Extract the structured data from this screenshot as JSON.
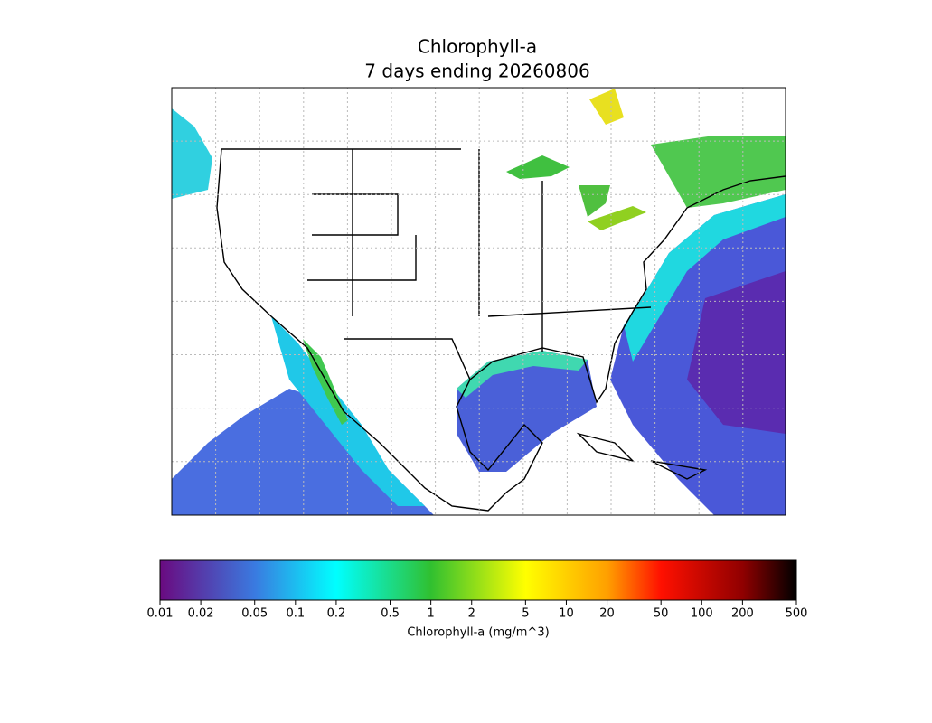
{
  "chart_data": {
    "type": "map",
    "title_lines": [
      "Chlorophyll-a",
      "7 days ending 20260806"
    ],
    "colorbar": {
      "label": "Chlorophyll-a (mg/m^3)",
      "log_scale": true,
      "xlim": [
        0.01,
        500
      ],
      "xticks": [
        0.01,
        0.02,
        0.05,
        0.1,
        0.2,
        0.5,
        1,
        2,
        5,
        10,
        20,
        50,
        100,
        200,
        500
      ],
      "colormap": [
        {
          "value": 0.01,
          "color": "#6a0a80"
        },
        {
          "value": 0.05,
          "color": "#3a7ae0"
        },
        {
          "value": 0.2,
          "color": "#00ffff"
        },
        {
          "value": 1,
          "color": "#30c030"
        },
        {
          "value": 5,
          "color": "#ffff00"
        },
        {
          "value": 20,
          "color": "#ffa000"
        },
        {
          "value": 50,
          "color": "#ff1000"
        },
        {
          "value": 200,
          "color": "#900000"
        },
        {
          "value": 500,
          "color": "#000000"
        }
      ]
    }
  }
}
